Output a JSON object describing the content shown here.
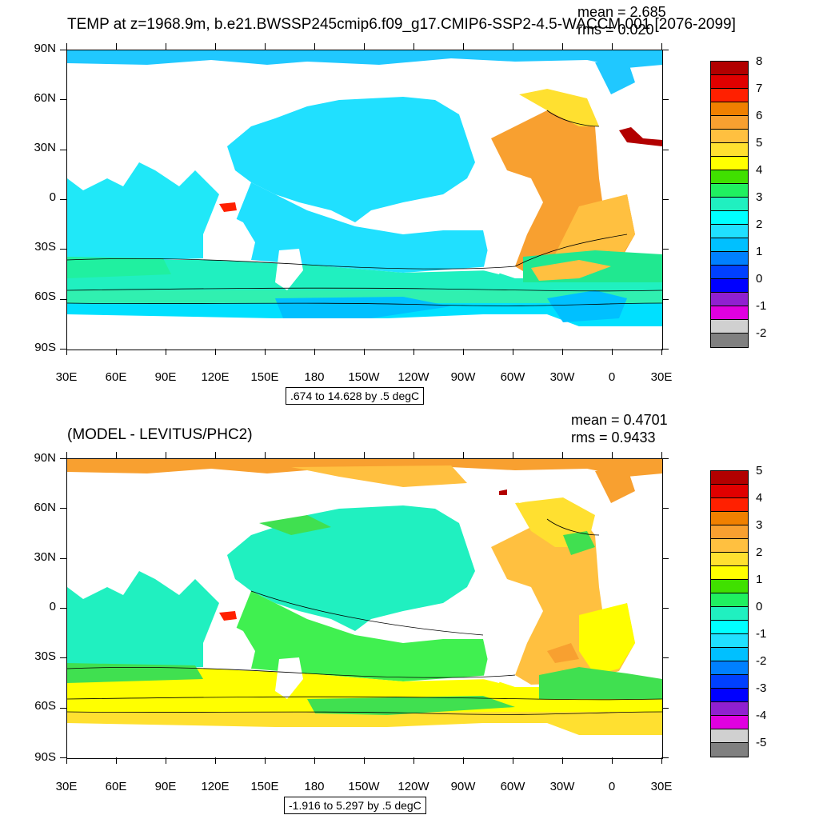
{
  "top": {
    "title": "TEMP at z=1968.9m, b.e21.BWSSP245cmip6.f09_g17.CMIP6-SSP2-4.5-WACCM.001 [2076-2099]",
    "mean": "mean = 2.685",
    "rms": "rms = 0.020",
    "contour_info": ".674 to 14.628 by .5 degC",
    "colorbar_labels": [
      "8",
      "7",
      "6",
      "5",
      "4",
      "3",
      "2",
      "1",
      "0",
      "-1",
      "-2"
    ],
    "colorbar_colors": [
      "#b20000",
      "#e00000",
      "#ff2000",
      "#f08000",
      "#f8a030",
      "#ffc040",
      "#ffe030",
      "#ffff00",
      "#40e000",
      "#20f060",
      "#20f0c0",
      "#00ffff",
      "#20e0ff",
      "#00c0ff",
      "#0080ff",
      "#0040ff",
      "#0000ff",
      "#9020d0",
      "#e000e0",
      "#d0d0d0",
      "#808080"
    ]
  },
  "bottom": {
    "title": "(MODEL - LEVITUS/PHC2)",
    "mean": "mean = 0.4701",
    "rms": "rms = 0.9433",
    "contour_info": "-1.916 to 5.297 by .5 degC",
    "colorbar_labels": [
      "5",
      "4",
      "3",
      "2",
      "1",
      "0",
      "-1",
      "-2",
      "-3",
      "-4",
      "-5"
    ],
    "colorbar_colors": [
      "#b20000",
      "#e00000",
      "#ff2000",
      "#f08000",
      "#f8a030",
      "#ffc040",
      "#ffe030",
      "#ffff00",
      "#40e000",
      "#20f060",
      "#20f0c0",
      "#00ffff",
      "#20e0ff",
      "#00c0ff",
      "#0080ff",
      "#0040ff",
      "#0000ff",
      "#9020d0",
      "#e000e0",
      "#d0d0d0",
      "#808080"
    ]
  },
  "axes": {
    "y_labels": [
      "90N",
      "60N",
      "30N",
      "0",
      "30S",
      "60S",
      "90S"
    ],
    "x_labels": [
      "30E",
      "60E",
      "90E",
      "120E",
      "150E",
      "180",
      "150W",
      "120W",
      "90W",
      "60W",
      "30W",
      "0",
      "30E"
    ]
  }
}
